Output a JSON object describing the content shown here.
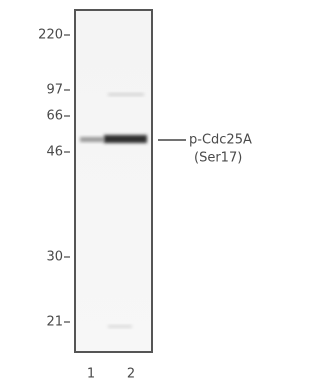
{
  "markers": [
    "220",
    "97",
    "66",
    "46",
    "30",
    "21"
  ],
  "lanes": [
    "1",
    "2"
  ],
  "band_label": {
    "name": "p-Cdc25A",
    "site": "(Ser17)"
  }
}
